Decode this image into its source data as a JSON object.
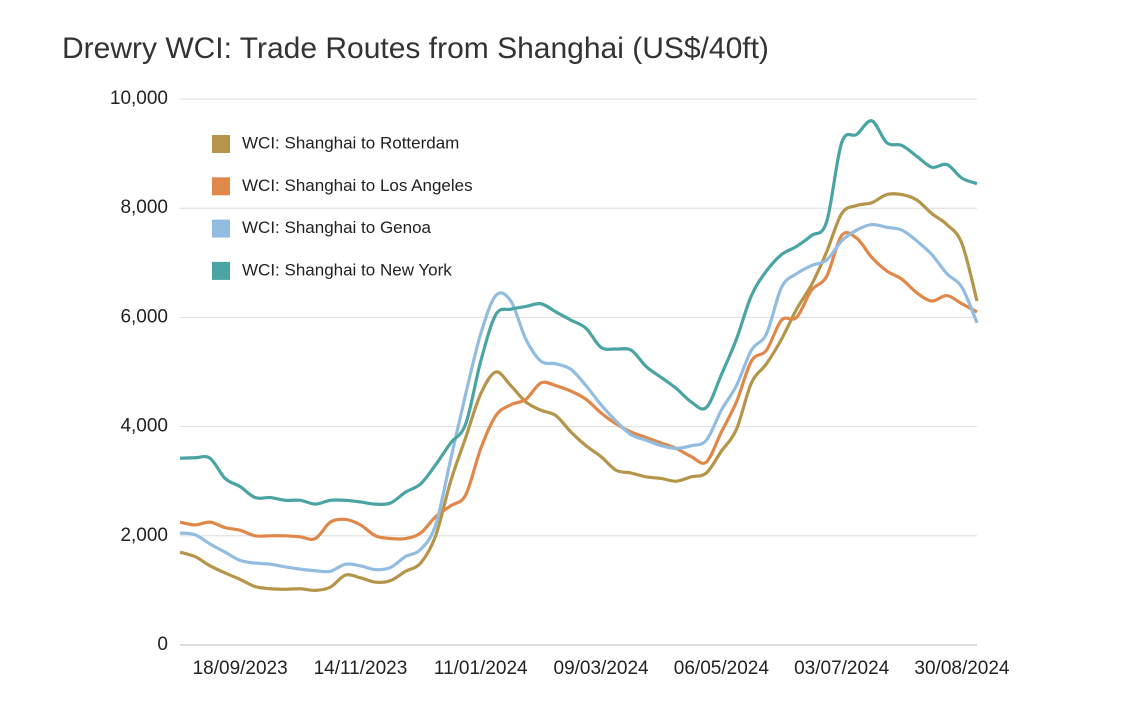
{
  "chart_data": {
    "type": "line",
    "title": "Drewry WCI: Trade Routes from Shanghai (US$/40ft)",
    "categories": [
      null,
      null,
      null,
      null,
      "18/09/2023",
      null,
      null,
      null,
      null,
      null,
      null,
      null,
      "14/11/2023",
      null,
      null,
      null,
      null,
      null,
      null,
      null,
      "11/01/2024",
      null,
      null,
      null,
      null,
      null,
      null,
      null,
      "09/03/2024",
      null,
      null,
      null,
      null,
      null,
      null,
      null,
      "06/05/2024",
      null,
      null,
      null,
      null,
      null,
      null,
      null,
      "03/07/2024",
      null,
      null,
      null,
      null,
      null,
      null,
      null,
      "30/08/2024",
      null
    ],
    "series": [
      {
        "name": "WCI: Shanghai to Rotterdam",
        "color": "#b5954a",
        "values": [
          1700,
          1620,
          1450,
          1320,
          1200,
          1070,
          1030,
          1020,
          1030,
          1000,
          1060,
          1280,
          1230,
          1150,
          1180,
          1350,
          1500,
          2000,
          3000,
          3800,
          4600,
          5000,
          4750,
          4450,
          4300,
          4200,
          3900,
          3650,
          3450,
          3200,
          3150,
          3080,
          3050,
          3000,
          3080,
          3150,
          3550,
          3950,
          4800,
          5150,
          5600,
          6150,
          6600,
          7200,
          7900,
          8050,
          8100,
          8250,
          8250,
          8150,
          7900,
          7700,
          7350,
          6300
        ]
      },
      {
        "name": "WCI: Shanghai to Los Angeles",
        "color": "#e0884a",
        "values": [
          2250,
          2200,
          2250,
          2150,
          2100,
          2000,
          2000,
          2000,
          1980,
          1950,
          2250,
          2300,
          2200,
          2000,
          1950,
          1950,
          2050,
          2350,
          2550,
          2750,
          3600,
          4200,
          4400,
          4500,
          4800,
          4750,
          4650,
          4500,
          4250,
          4050,
          3900,
          3800,
          3700,
          3600,
          3450,
          3350,
          3900,
          4450,
          5200,
          5400,
          5950,
          6000,
          6500,
          6750,
          7500,
          7450,
          7100,
          6850,
          6700,
          6450,
          6300,
          6400,
          6250,
          6100
        ]
      },
      {
        "name": "WCI: Shanghai to Genoa",
        "color": "#93bde0",
        "values": [
          2050,
          2020,
          1850,
          1700,
          1550,
          1500,
          1480,
          1430,
          1390,
          1360,
          1350,
          1480,
          1450,
          1380,
          1420,
          1620,
          1750,
          2200,
          3400,
          4600,
          5700,
          6400,
          6300,
          5600,
          5200,
          5150,
          5050,
          4750,
          4400,
          4100,
          3850,
          3750,
          3650,
          3600,
          3650,
          3750,
          4300,
          4750,
          5400,
          5700,
          6550,
          6800,
          6950,
          7050,
          7400,
          7600,
          7700,
          7650,
          7600,
          7400,
          7150,
          6800,
          6550,
          5900
        ]
      },
      {
        "name": "WCI: Shanghai to New York",
        "color": "#4aa4a4",
        "values": [
          3420,
          3430,
          3420,
          3050,
          2900,
          2700,
          2700,
          2650,
          2650,
          2580,
          2650,
          2650,
          2620,
          2580,
          2600,
          2800,
          2950,
          3300,
          3700,
          4050,
          5200,
          6050,
          6150,
          6200,
          6250,
          6100,
          5950,
          5800,
          5450,
          5420,
          5400,
          5100,
          4900,
          4700,
          4450,
          4350,
          4950,
          5600,
          6400,
          6850,
          7150,
          7300,
          7500,
          7750,
          9200,
          9350,
          9600,
          9200,
          9150,
          8950,
          8750,
          8800,
          8550,
          8450
        ]
      }
    ],
    "ylim": [
      0,
      10000
    ],
    "yticks": [
      0,
      {
        "value": 2000,
        "label": "2,000"
      },
      {
        "value": 4000,
        "label": "4,000"
      },
      {
        "value": 6000,
        "label": "6,000"
      },
      {
        "value": 8000,
        "label": "8,000"
      },
      {
        "value": 10000,
        "label": "10,000"
      }
    ],
    "grid": true,
    "legend": "top-left"
  }
}
